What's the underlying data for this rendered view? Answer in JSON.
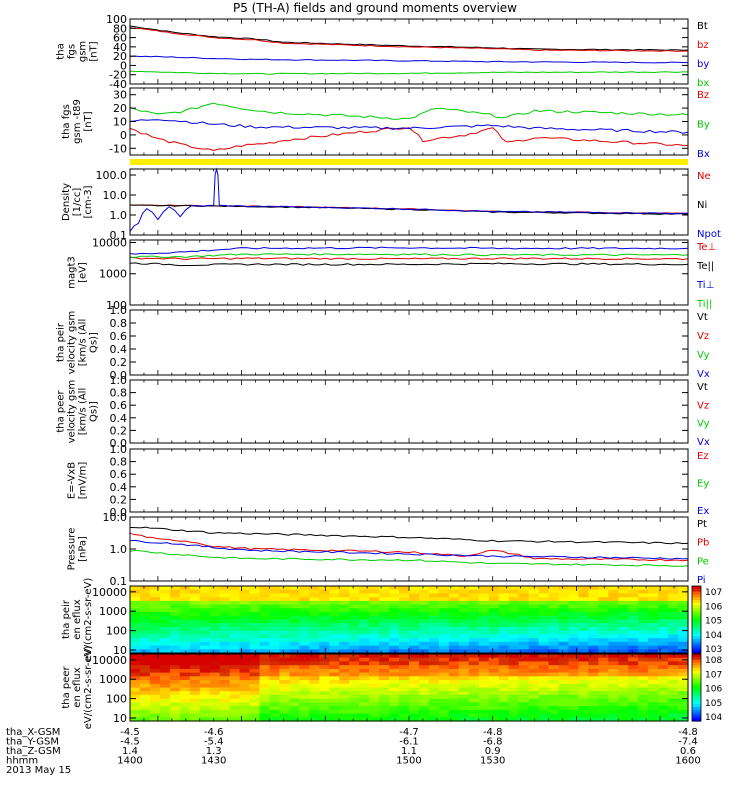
{
  "title": "P5 (TH-A) fields and ground moments overview",
  "colors": {
    "black": "#000000",
    "red": "#e00000",
    "green": "#00cc00",
    "blue": "#0000dd",
    "yellow": "#ffee00"
  },
  "chart_data": [
    {
      "id": "bfield_gsm",
      "type": "line",
      "ylabel": "tha fgs gsm [nT]",
      "ylim": [
        -40,
        100
      ],
      "yticks": [
        "100",
        "80",
        "60",
        "40",
        "20",
        "0",
        "-20",
        "-40"
      ],
      "series": [
        {
          "name": "Bt",
          "color": "black",
          "points": [
            [
              1400,
              85
            ],
            [
              1415,
              72
            ],
            [
              1430,
              62
            ],
            [
              1445,
              57
            ],
            [
              1455,
              50
            ],
            [
              1500,
              42
            ],
            [
              1515,
              40
            ],
            [
              1530,
              38
            ],
            [
              1545,
              35
            ],
            [
              1600,
              33
            ]
          ]
        },
        {
          "name": "bz",
          "color": "red",
          "points": [
            [
              1400,
              82
            ],
            [
              1415,
              70
            ],
            [
              1430,
              60
            ],
            [
              1445,
              55
            ],
            [
              1455,
              48
            ],
            [
              1500,
              40
            ],
            [
              1515,
              38
            ],
            [
              1530,
              36
            ],
            [
              1545,
              33
            ],
            [
              1600,
              31
            ]
          ]
        },
        {
          "name": "by",
          "color": "blue",
          "points": [
            [
              1400,
              20
            ],
            [
              1415,
              18
            ],
            [
              1430,
              15
            ],
            [
              1445,
              13
            ],
            [
              1500,
              10
            ],
            [
              1530,
              8
            ],
            [
              1600,
              6
            ]
          ]
        },
        {
          "name": "bx",
          "color": "green",
          "points": [
            [
              1400,
              -12
            ],
            [
              1415,
              -15
            ],
            [
              1430,
              -17
            ],
            [
              1445,
              -18
            ],
            [
              1500,
              -17
            ],
            [
              1530,
              -15
            ],
            [
              1600,
              -14
            ]
          ]
        }
      ]
    },
    {
      "id": "bfield_fgs",
      "type": "line",
      "ylabel": "tha fgs gsm -t89 [nT]",
      "ylim": [
        -15,
        35
      ],
      "yticks": [
        "30",
        "20",
        "10",
        "0",
        "-10"
      ],
      "series": [
        {
          "name": "Bz",
          "color": "red",
          "points": [
            [
              1400,
              5
            ],
            [
              1410,
              -3
            ],
            [
              1420,
              -8
            ],
            [
              1430,
              -12
            ],
            [
              1440,
              -8
            ],
            [
              1450,
              -6
            ],
            [
              1455,
              -4
            ],
            [
              1500,
              6
            ],
            [
              1505,
              -4
            ],
            [
              1520,
              0
            ],
            [
              1530,
              5
            ],
            [
              1535,
              -6
            ],
            [
              1545,
              -2
            ],
            [
              1600,
              -8
            ]
          ]
        },
        {
          "name": "By",
          "color": "green",
          "points": [
            [
              1400,
              20
            ],
            [
              1410,
              15
            ],
            [
              1420,
              18
            ],
            [
              1430,
              24
            ],
            [
              1440,
              20
            ],
            [
              1450,
              17
            ],
            [
              1500,
              12
            ],
            [
              1510,
              20
            ],
            [
              1525,
              16
            ],
            [
              1535,
              13
            ],
            [
              1545,
              18
            ],
            [
              1600,
              15
            ]
          ]
        },
        {
          "name": "Bx",
          "color": "blue",
          "points": [
            [
              1400,
              10
            ],
            [
              1410,
              12
            ],
            [
              1420,
              10
            ],
            [
              1430,
              8
            ],
            [
              1445,
              6
            ],
            [
              1500,
              5
            ],
            [
              1515,
              6
            ],
            [
              1530,
              7
            ],
            [
              1545,
              5
            ],
            [
              1600,
              2
            ]
          ]
        }
      ]
    },
    {
      "id": "density",
      "type": "line",
      "ylabel": "Density [1/cc] [cm-3]",
      "yscale": "log",
      "ylim": [
        0.1,
        200
      ],
      "yticks": [
        "100.0",
        "10.0",
        "1.0",
        "0.1"
      ],
      "series": [
        {
          "name": "Ne",
          "color": "red",
          "points": [
            [
              1400,
              3.2
            ],
            [
              1420,
              3.0
            ],
            [
              1440,
              2.8
            ],
            [
              1500,
              2.0
            ],
            [
              1530,
              1.5
            ],
            [
              1600,
              1.2
            ]
          ]
        },
        {
          "name": "Ni",
          "color": "black",
          "points": [
            [
              1400,
              3.0
            ],
            [
              1420,
              2.9
            ],
            [
              1440,
              2.7
            ],
            [
              1500,
              1.9
            ],
            [
              1530,
              1.4
            ],
            [
              1600,
              1.1
            ]
          ]
        },
        {
          "name": "Npot",
          "color": "blue",
          "points": [
            [
              1400,
              0.15
            ],
            [
              1403,
              0.4
            ],
            [
              1406,
              2.0
            ],
            [
              1410,
              0.6
            ],
            [
              1414,
              2.5
            ],
            [
              1418,
              0.8
            ],
            [
              1422,
              3.0
            ],
            [
              1426,
              2.8
            ],
            [
              1430,
              3.0
            ],
            [
              1431,
              200
            ],
            [
              1432,
              3.0
            ],
            [
              1440,
              2.8
            ],
            [
              1500,
              2.0
            ],
            [
              1530,
              1.5
            ],
            [
              1600,
              1.2
            ]
          ]
        }
      ]
    },
    {
      "id": "temperature",
      "type": "line",
      "ylabel": "magt3 [eV]",
      "yscale": "log",
      "ylim": [
        100,
        12000
      ],
      "yticks": [
        "10000",
        "1000",
        "100"
      ],
      "series": [
        {
          "name": "Te⊥",
          "color": "red",
          "points": [
            [
              1400,
              3200
            ],
            [
              1420,
              3000
            ],
            [
              1440,
              3100
            ],
            [
              1500,
              3000
            ],
            [
              1530,
              3100
            ],
            [
              1600,
              3000
            ]
          ]
        },
        {
          "name": "Te||",
          "color": "black",
          "points": [
            [
              1400,
              2200
            ],
            [
              1420,
              1900
            ],
            [
              1440,
              2000
            ],
            [
              1500,
              2000
            ],
            [
              1530,
              2100
            ],
            [
              1600,
              2000
            ]
          ]
        },
        {
          "name": "Ti⊥",
          "color": "blue",
          "points": [
            [
              1400,
              4200
            ],
            [
              1420,
              5000
            ],
            [
              1440,
              6500
            ],
            [
              1500,
              6800
            ],
            [
              1530,
              6500
            ],
            [
              1600,
              6500
            ]
          ]
        },
        {
          "name": "Ti||",
          "color": "green",
          "points": [
            [
              1400,
              3500
            ],
            [
              1420,
              3500
            ],
            [
              1440,
              4200
            ],
            [
              1500,
              4200
            ],
            [
              1530,
              4000
            ],
            [
              1600,
              4000
            ]
          ]
        }
      ]
    },
    {
      "id": "vel_peir",
      "type": "line",
      "ylabel": "tha peir velocity gsm [km/s (All Qs)]",
      "ylim": [
        0,
        1
      ],
      "yticks": [
        "1.0",
        "0.8",
        "0.6",
        "0.4",
        "0.2",
        "0.0"
      ],
      "series": [
        {
          "name": "Vt",
          "color": "black"
        },
        {
          "name": "Vz",
          "color": "red"
        },
        {
          "name": "Vy",
          "color": "green"
        },
        {
          "name": "Vx",
          "color": "blue"
        }
      ]
    },
    {
      "id": "vel_peer",
      "type": "line",
      "ylabel": "tha peer velocity gsm [km/s (All Qs)]",
      "ylim": [
        0,
        1
      ],
      "yticks": [
        "1.0",
        "0.8",
        "0.6",
        "0.4",
        "0.2",
        "0.0"
      ],
      "series": [
        {
          "name": "Vt",
          "color": "black"
        },
        {
          "name": "Vz",
          "color": "red"
        },
        {
          "name": "Vy",
          "color": "green"
        },
        {
          "name": "Vx",
          "color": "blue"
        }
      ]
    },
    {
      "id": "efield",
      "type": "line",
      "ylabel": "E=-VxB [mV/m]",
      "ylim": [
        0,
        1
      ],
      "yticks": [
        "1.0",
        "0.8",
        "0.6",
        "0.4",
        "0.2",
        "0.0"
      ],
      "series": [
        {
          "name": "Ez",
          "color": "red"
        },
        {
          "name": "Ey",
          "color": "green"
        },
        {
          "name": "Ex",
          "color": "blue"
        }
      ]
    },
    {
      "id": "pressure",
      "type": "line",
      "ylabel": "Pressure [nPa]",
      "yscale": "log",
      "ylim": [
        0.1,
        10
      ],
      "yticks": [
        "10.0",
        "1.0",
        "0.1"
      ],
      "series": [
        {
          "name": "Pt",
          "color": "black",
          "points": [
            [
              1400,
              5.0
            ],
            [
              1415,
              4.0
            ],
            [
              1430,
              3.2
            ],
            [
              1445,
              3.0
            ],
            [
              1500,
              2.3
            ],
            [
              1530,
              1.8
            ],
            [
              1600,
              1.5
            ]
          ]
        },
        {
          "name": "Pb",
          "color": "red",
          "points": [
            [
              1400,
              3.0
            ],
            [
              1410,
              2.0
            ],
            [
              1420,
              1.8
            ],
            [
              1430,
              1.2
            ],
            [
              1445,
              1.0
            ],
            [
              1500,
              0.8
            ],
            [
              1520,
              0.6
            ],
            [
              1530,
              0.9
            ],
            [
              1545,
              0.5
            ],
            [
              1600,
              0.45
            ]
          ]
        },
        {
          "name": "Pe",
          "color": "green",
          "points": [
            [
              1400,
              0.9
            ],
            [
              1415,
              0.7
            ],
            [
              1430,
              0.55
            ],
            [
              1445,
              0.5
            ],
            [
              1500,
              0.45
            ],
            [
              1530,
              0.35
            ],
            [
              1600,
              0.3
            ]
          ]
        },
        {
          "name": "Pi",
          "color": "blue",
          "points": [
            [
              1400,
              1.8
            ],
            [
              1415,
              1.5
            ],
            [
              1430,
              1.1
            ],
            [
              1445,
              0.9
            ],
            [
              1500,
              0.7
            ],
            [
              1530,
              0.6
            ],
            [
              1600,
              0.5
            ]
          ]
        }
      ]
    },
    {
      "id": "spec_ion",
      "type": "heatmap",
      "ylabel": "tha peir en eflux eV/(cm2-s-sr-eV)",
      "yscale": "log",
      "ylim": [
        7,
        20000
      ],
      "yticks": [
        "10000",
        "1000",
        "100",
        "10"
      ],
      "colorbar_ticks": [
        "10^7",
        "10^6",
        "10^5",
        "10^4",
        "10^3"
      ]
    },
    {
      "id": "spec_elec",
      "type": "heatmap",
      "ylabel": "tha peer en eflux eV/(cm2-s-sr-eV)",
      "yscale": "log",
      "ylim": [
        7,
        20000
      ],
      "yticks": [
        "10000",
        "1000",
        "100",
        "10"
      ],
      "colorbar_ticks": [
        "10^8",
        "10^7",
        "10^6",
        "10^5",
        "10^4"
      ]
    }
  ],
  "time_axis": {
    "row_labels": [
      "tha_X-GSM",
      "tha_Y-GSM",
      "tha_Z-GSM",
      "hhmm",
      "2013 May 15"
    ],
    "columns": [
      {
        "x": 1400,
        "X": "-4.5",
        "Y": "-4.5",
        "Z": "1.4",
        "t": "1400"
      },
      {
        "x": 1430,
        "X": "-4.6",
        "Y": "-5.4",
        "Z": "1.3",
        "t": "1430"
      },
      {
        "x": 1500,
        "X": "-4.7",
        "Y": "-6.1",
        "Z": "1.1",
        "t": "1500"
      },
      {
        "x": 1530,
        "X": "-4.8",
        "Y": "-6.8",
        "Z": "0.9",
        "t": "1530"
      },
      {
        "x": 1600,
        "X": "-4.8",
        "Y": "-7.4",
        "Z": "0.6",
        "t": "1600"
      }
    ],
    "xlim": [
      1400,
      1600
    ]
  }
}
